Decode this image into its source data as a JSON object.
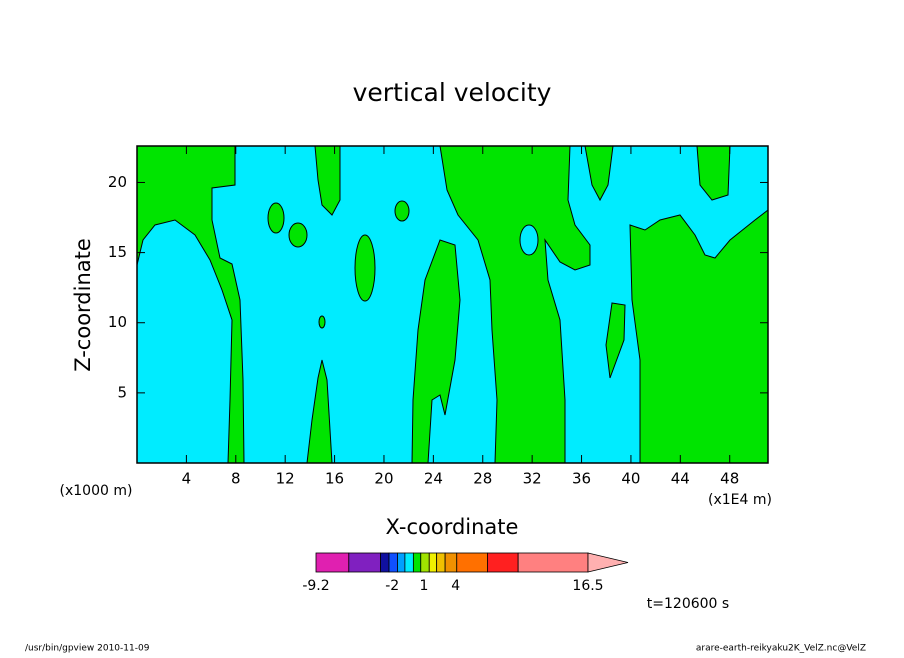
{
  "chart_data": {
    "type": "contour",
    "title": "vertical velocity",
    "x_label": "X-coordinate",
    "y_label": "Z-coordinate",
    "x_unit_label": "(x1E4 m)",
    "y_unit_label": "(x1000 m)",
    "xlim": [
      0,
      51.1
    ],
    "xticks": [
      4,
      8,
      12,
      16,
      20,
      24,
      28,
      32,
      36,
      40,
      44,
      48
    ],
    "ylim": [
      0,
      22.6
    ],
    "yticks": [
      5,
      10,
      15,
      20
    ],
    "colorbar": {
      "levels": [
        -9.2,
        -6.1,
        -3.1,
        -2.3,
        -1.5,
        -0.8,
        0,
        0.7,
        1.5,
        2.2,
        3,
        4.1,
        7,
        9.9,
        16.5
      ],
      "colors": [
        "#e020b0",
        "#8020c0",
        "#1010a0",
        "#1050ff",
        "#00a0ff",
        "#00ecff",
        "#00e400",
        "#a0e400",
        "#f0f000",
        "#f0c000",
        "#f09000",
        "#ff7000",
        "#ff2020",
        "#ff8080"
      ],
      "extend_color": "#ffb0b0",
      "ticks": [
        -9.2,
        -2,
        1,
        4,
        16.5
      ]
    },
    "annotation": "t=120600 s",
    "footer_left": "/usr/bin/gpview  2010-11-09",
    "footer_right": "arare-earth-reikyaku2K_VelZ.nc@VelZ"
  }
}
